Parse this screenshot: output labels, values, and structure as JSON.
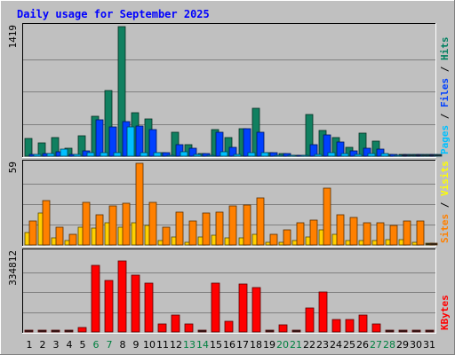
{
  "chart_data": {
    "type": "bar",
    "title": "Daily usage for September 2025",
    "categories": [
      "1",
      "2",
      "3",
      "4",
      "5",
      "6",
      "7",
      "8",
      "9",
      "10",
      "11",
      "12",
      "13",
      "14",
      "15",
      "16",
      "17",
      "18",
      "19",
      "20",
      "21",
      "22",
      "23",
      "24",
      "25",
      "26",
      "27",
      "28",
      "29",
      "30",
      "31"
    ],
    "weekend_days": [
      "6",
      "7",
      "13",
      "14",
      "20",
      "21",
      "27",
      "28"
    ],
    "x_tick_color": "#000000",
    "weekend_tick_color": "#008040",
    "panels": [
      {
        "id": "hits-panel",
        "ymax_label": "1419",
        "ylim": [
          0,
          1419
        ],
        "right_legend": [
          {
            "text": "Pages",
            "color": "#00c0ff"
          },
          {
            "text": " / ",
            "color": "#000000"
          },
          {
            "text": "Files",
            "color": "#0040ff"
          },
          {
            "text": " / ",
            "color": "#000000"
          },
          {
            "text": "Hits",
            "color": "#008060"
          }
        ],
        "series": [
          {
            "name": "Hits",
            "color": "#108060",
            "values": [
              190,
              150,
              200,
              90,
              220,
              440,
              720,
              1419,
              480,
              410,
              40,
              260,
              130,
              30,
              290,
              200,
              300,
              520,
              40,
              30,
              10,
              460,
              280,
              200,
              100,
              250,
              170,
              20,
              0,
              0,
              0
            ]
          },
          {
            "name": "Files",
            "color": "#0040ff",
            "values": [
              20,
              30,
              50,
              20,
              60,
              400,
              320,
              380,
              330,
              290,
              40,
              130,
              90,
              30,
              260,
              100,
              300,
              260,
              40,
              30,
              10,
              130,
              230,
              160,
              60,
              90,
              80,
              20,
              0,
              0,
              0
            ]
          },
          {
            "name": "Pages",
            "color": "#00c0ff",
            "values": [
              20,
              30,
              80,
              20,
              40,
              40,
              40,
              320,
              40,
              40,
              10,
              50,
              20,
              10,
              50,
              20,
              40,
              40,
              10,
              10,
              5,
              20,
              40,
              30,
              20,
              30,
              30,
              5,
              0,
              0,
              0
            ]
          }
        ]
      },
      {
        "id": "visits-panel",
        "ymax_label": "59",
        "ylim": [
          0,
          59
        ],
        "right_legend": [
          {
            "text": "Sites",
            "color": "#ff8000"
          },
          {
            "text": " / ",
            "color": "#000000"
          },
          {
            "text": "Visits",
            "color": "#ffff00"
          }
        ],
        "series": [
          {
            "name": "Visits",
            "color": "#ffd000",
            "values": [
              9,
              23,
              5,
              3,
              13,
              12,
              16,
              13,
              16,
              14,
              3,
              6,
              2,
              6,
              7,
              5,
              5,
              8,
              2,
              2,
              3,
              6,
              11,
              8,
              3,
              3,
              3,
              4,
              4,
              2,
              0
            ]
          },
          {
            "name": "Sites",
            "color": "#ff8000",
            "values": [
              17,
              32,
              13,
              8,
              31,
              22,
              28,
              30,
              59,
              31,
              13,
              24,
              17,
              23,
              24,
              28,
              29,
              34,
              8,
              11,
              16,
              18,
              41,
              22,
              20,
              16,
              16,
              14,
              17,
              17,
              0
            ]
          }
        ]
      },
      {
        "id": "kbytes-panel",
        "ymax_label": "334812",
        "ylim": [
          0,
          334812
        ],
        "right_legend": [
          {
            "text": "KBytes",
            "color": "#ff0000"
          }
        ],
        "series": [
          {
            "name": "KBytes",
            "color": "#ff0000",
            "values": [
              0,
              0,
              0,
              0,
              20000,
              280000,
              216000,
              296000,
              237000,
              206000,
              33000,
              72000,
              33000,
              0,
              206000,
              45000,
              202000,
              186000,
              0,
              28000,
              0,
              102000,
              169000,
              51000,
              51000,
              72000,
              35000,
              0,
              0,
              0,
              0
            ]
          }
        ]
      }
    ]
  }
}
